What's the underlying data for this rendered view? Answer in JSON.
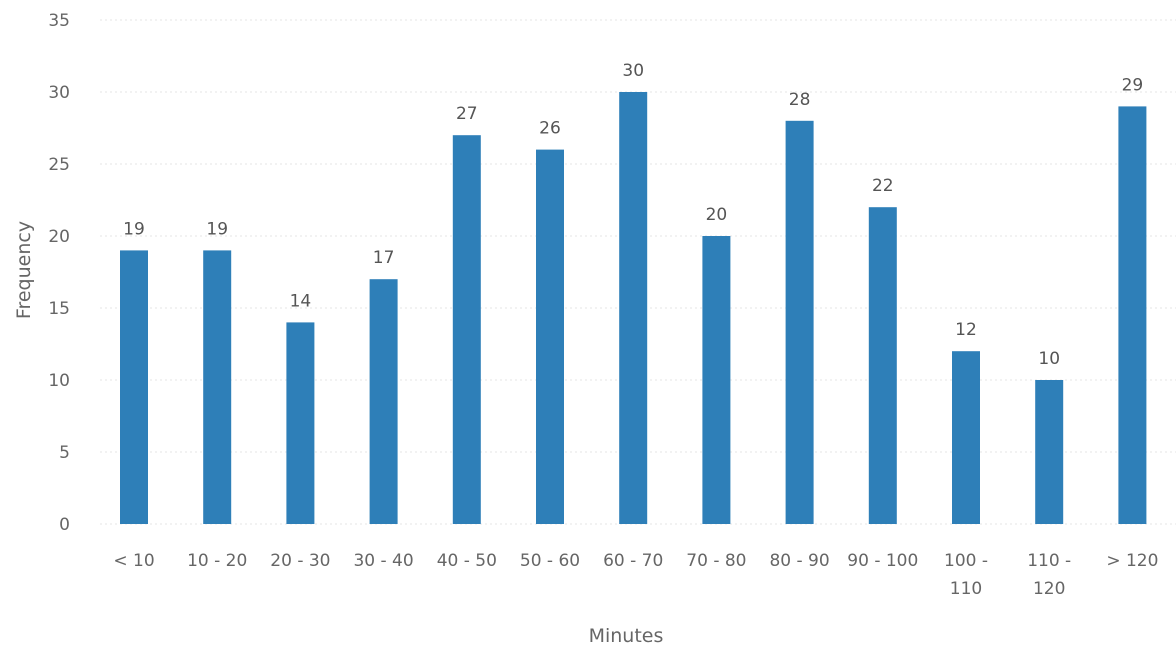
{
  "chart_data": {
    "type": "bar",
    "xlabel": "Minutes",
    "ylabel": "Frequency",
    "ylim": [
      0,
      35
    ],
    "yticks": [
      "0",
      "5",
      "10",
      "15",
      "20",
      "25",
      "30",
      "35"
    ],
    "grid": true,
    "categories": [
      [
        "< 10"
      ],
      [
        "10 - 20"
      ],
      [
        "20 - 30"
      ],
      [
        "30 - 40"
      ],
      [
        "40 - 50"
      ],
      [
        "50 - 60"
      ],
      [
        "60 - 70"
      ],
      [
        "70 - 80"
      ],
      [
        "80 - 90"
      ],
      [
        "90 - 100"
      ],
      [
        "100 -",
        "110"
      ],
      [
        "110 -",
        "120"
      ],
      [
        "> 120"
      ]
    ],
    "values": [
      19,
      19,
      14,
      17,
      27,
      26,
      30,
      20,
      28,
      22,
      12,
      10,
      29
    ],
    "bar_color": "#2e7fb8"
  }
}
